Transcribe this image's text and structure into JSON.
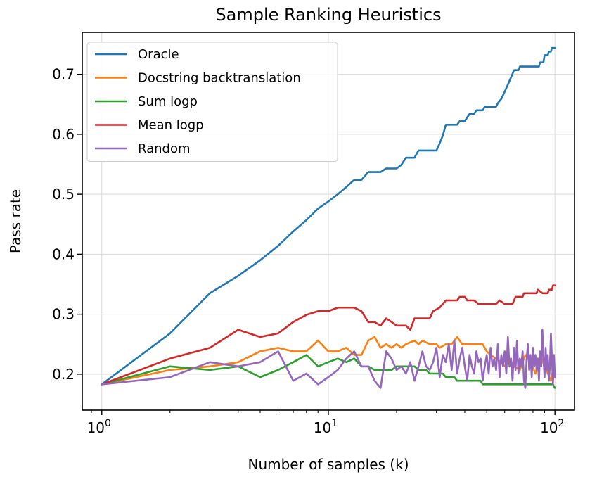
{
  "chart_data": {
    "type": "line",
    "title": "Sample Ranking Heuristics",
    "xlabel": "Number of samples (k)",
    "ylabel": "Pass rate",
    "xscale": "log",
    "xlim": [
      0.82,
      122
    ],
    "ylim": [
      0.14,
      0.77
    ],
    "x_ticks": [
      {
        "value": 1,
        "base": "10",
        "exp": "0"
      },
      {
        "value": 10,
        "base": "10",
        "exp": "1"
      },
      {
        "value": 100,
        "base": "10",
        "exp": "2"
      }
    ],
    "y_ticks": [
      {
        "value": 0.2,
        "label": "0.2"
      },
      {
        "value": 0.3,
        "label": "0.3"
      },
      {
        "value": 0.4,
        "label": "0.4"
      },
      {
        "value": 0.5,
        "label": "0.5"
      },
      {
        "value": 0.6,
        "label": "0.6"
      },
      {
        "value": 0.7,
        "label": "0.7"
      }
    ],
    "grid": true,
    "legend_position": "top-left",
    "series": [
      {
        "name": "Oracle",
        "color": "#1f77b4",
        "points": [
          [
            1,
            0.183
          ],
          [
            2,
            0.268
          ],
          [
            3,
            0.335
          ],
          [
            4,
            0.364
          ],
          [
            5,
            0.39
          ],
          [
            6,
            0.414
          ],
          [
            7,
            0.438
          ],
          [
            8,
            0.457
          ],
          [
            9,
            0.476
          ],
          [
            10,
            0.488
          ],
          [
            11,
            0.5
          ],
          [
            12,
            0.512
          ],
          [
            13,
            0.524
          ],
          [
            14,
            0.524
          ],
          [
            15,
            0.537
          ],
          [
            17,
            0.537
          ],
          [
            18,
            0.543
          ],
          [
            20,
            0.543
          ],
          [
            21,
            0.549
          ],
          [
            22,
            0.561
          ],
          [
            24,
            0.561
          ],
          [
            25,
            0.573
          ],
          [
            30,
            0.573
          ],
          [
            31,
            0.585
          ],
          [
            32,
            0.598
          ],
          [
            33,
            0.616
          ],
          [
            37,
            0.616
          ],
          [
            38,
            0.622
          ],
          [
            40,
            0.622
          ],
          [
            42,
            0.634
          ],
          [
            44,
            0.634
          ],
          [
            45,
            0.64
          ],
          [
            48,
            0.64
          ],
          [
            49,
            0.646
          ],
          [
            55,
            0.646
          ],
          [
            56,
            0.652
          ],
          [
            58,
            0.659
          ],
          [
            60,
            0.671
          ],
          [
            62,
            0.683
          ],
          [
            64,
            0.695
          ],
          [
            66,
            0.707
          ],
          [
            69,
            0.707
          ],
          [
            70,
            0.713
          ],
          [
            85,
            0.713
          ],
          [
            86,
            0.72
          ],
          [
            89,
            0.72
          ],
          [
            90,
            0.732
          ],
          [
            93,
            0.732
          ],
          [
            94,
            0.738
          ],
          [
            96,
            0.738
          ],
          [
            97,
            0.744
          ],
          [
            100,
            0.744
          ]
        ]
      },
      {
        "name": "Docstring backtranslation",
        "color": "#ff7f0e",
        "points": [
          [
            1,
            0.183
          ],
          [
            2,
            0.207
          ],
          [
            3,
            0.213
          ],
          [
            4,
            0.22
          ],
          [
            5,
            0.238
          ],
          [
            6,
            0.244
          ],
          [
            7,
            0.238
          ],
          [
            8,
            0.238
          ],
          [
            9,
            0.256
          ],
          [
            10,
            0.238
          ],
          [
            11,
            0.238
          ],
          [
            12,
            0.244
          ],
          [
            13,
            0.232
          ],
          [
            14,
            0.232
          ],
          [
            15,
            0.256
          ],
          [
            16,
            0.262
          ],
          [
            17,
            0.244
          ],
          [
            18,
            0.25
          ],
          [
            19,
            0.244
          ],
          [
            20,
            0.25
          ],
          [
            21,
            0.244
          ],
          [
            22,
            0.25
          ],
          [
            24,
            0.256
          ],
          [
            25,
            0.25
          ],
          [
            26,
            0.256
          ],
          [
            28,
            0.25
          ],
          [
            30,
            0.25
          ],
          [
            31,
            0.244
          ],
          [
            33,
            0.25
          ],
          [
            35,
            0.25
          ],
          [
            37,
            0.262
          ],
          [
            39,
            0.25
          ],
          [
            47,
            0.25
          ],
          [
            48,
            0.25
          ],
          [
            50,
            0.238
          ],
          [
            52,
            0.232
          ],
          [
            55,
            0.226
          ],
          [
            58,
            0.22
          ],
          [
            60,
            0.213
          ],
          [
            63,
            0.226
          ],
          [
            66,
            0.213
          ],
          [
            70,
            0.207
          ],
          [
            74,
            0.232
          ],
          [
            78,
            0.22
          ],
          [
            82,
            0.201
          ],
          [
            86,
            0.232
          ],
          [
            90,
            0.213
          ],
          [
            93,
            0.201
          ],
          [
            96,
            0.189
          ],
          [
            98,
            0.207
          ],
          [
            100,
            0.195
          ]
        ]
      },
      {
        "name": "Sum logp",
        "color": "#2ca02c",
        "points": [
          [
            1,
            0.183
          ],
          [
            2,
            0.213
          ],
          [
            3,
            0.207
          ],
          [
            4,
            0.213
          ],
          [
            5,
            0.195
          ],
          [
            6,
            0.207
          ],
          [
            7,
            0.22
          ],
          [
            8,
            0.232
          ],
          [
            9,
            0.213
          ],
          [
            10,
            0.22
          ],
          [
            11,
            0.226
          ],
          [
            12,
            0.22
          ],
          [
            13,
            0.226
          ],
          [
            14,
            0.213
          ],
          [
            15,
            0.213
          ],
          [
            16,
            0.207
          ],
          [
            19,
            0.207
          ],
          [
            20,
            0.213
          ],
          [
            24,
            0.213
          ],
          [
            25,
            0.207
          ],
          [
            27,
            0.207
          ],
          [
            28,
            0.201
          ],
          [
            32,
            0.201
          ],
          [
            33,
            0.195
          ],
          [
            36,
            0.195
          ],
          [
            37,
            0.189
          ],
          [
            47,
            0.189
          ],
          [
            48,
            0.183
          ],
          [
            98,
            0.183
          ],
          [
            100,
            0.177
          ]
        ]
      },
      {
        "name": "Mean logp",
        "color": "#d62728",
        "points": [
          [
            1,
            0.183
          ],
          [
            2,
            0.226
          ],
          [
            3,
            0.244
          ],
          [
            4,
            0.274
          ],
          [
            5,
            0.262
          ],
          [
            6,
            0.268
          ],
          [
            7,
            0.287
          ],
          [
            8,
            0.299
          ],
          [
            9,
            0.305
          ],
          [
            10,
            0.305
          ],
          [
            11,
            0.311
          ],
          [
            12,
            0.311
          ],
          [
            13,
            0.311
          ],
          [
            14,
            0.305
          ],
          [
            15,
            0.287
          ],
          [
            16,
            0.287
          ],
          [
            17,
            0.281
          ],
          [
            18,
            0.293
          ],
          [
            19,
            0.287
          ],
          [
            20,
            0.281
          ],
          [
            22,
            0.281
          ],
          [
            23,
            0.274
          ],
          [
            24,
            0.293
          ],
          [
            28,
            0.293
          ],
          [
            29,
            0.305
          ],
          [
            31,
            0.311
          ],
          [
            33,
            0.323
          ],
          [
            37,
            0.323
          ],
          [
            38,
            0.329
          ],
          [
            40,
            0.329
          ],
          [
            41,
            0.323
          ],
          [
            44,
            0.323
          ],
          [
            46,
            0.317
          ],
          [
            55,
            0.317
          ],
          [
            57,
            0.323
          ],
          [
            60,
            0.317
          ],
          [
            65,
            0.317
          ],
          [
            67,
            0.329
          ],
          [
            72,
            0.329
          ],
          [
            73,
            0.335
          ],
          [
            83,
            0.335
          ],
          [
            84,
            0.341
          ],
          [
            88,
            0.335
          ],
          [
            93,
            0.335
          ],
          [
            94,
            0.341
          ],
          [
            97,
            0.341
          ],
          [
            98,
            0.348
          ],
          [
            100,
            0.348
          ]
        ]
      },
      {
        "name": "Random",
        "color": "#9467bd",
        "points": [
          [
            1,
            0.183
          ],
          [
            2,
            0.195
          ],
          [
            3,
            0.22
          ],
          [
            4,
            0.213
          ],
          [
            5,
            0.22
          ],
          [
            6,
            0.238
          ],
          [
            7,
            0.189
          ],
          [
            8,
            0.201
          ],
          [
            9,
            0.183
          ],
          [
            10,
            0.195
          ],
          [
            11,
            0.207
          ],
          [
            12,
            0.226
          ],
          [
            13,
            0.238
          ],
          [
            14,
            0.213
          ],
          [
            15,
            0.213
          ],
          [
            16,
            0.189
          ],
          [
            17,
            0.177
          ],
          [
            18,
            0.238
          ],
          [
            19,
            0.226
          ],
          [
            20,
            0.207
          ],
          [
            21,
            0.213
          ],
          [
            22,
            0.201
          ],
          [
            23,
            0.22
          ],
          [
            24,
            0.189
          ],
          [
            25,
            0.213
          ],
          [
            26,
            0.238
          ],
          [
            27,
            0.213
          ],
          [
            28,
            0.207
          ],
          [
            29,
            0.22
          ],
          [
            30,
            0.244
          ],
          [
            31,
            0.195
          ],
          [
            32,
            0.232
          ],
          [
            33,
            0.22
          ],
          [
            34,
            0.25
          ],
          [
            35,
            0.207
          ],
          [
            36,
            0.256
          ],
          [
            37,
            0.201
          ],
          [
            38,
            0.226
          ],
          [
            39,
            0.244
          ],
          [
            40,
            0.213
          ],
          [
            41,
            0.189
          ],
          [
            42,
            0.232
          ],
          [
            43,
            0.213
          ],
          [
            44,
            0.201
          ],
          [
            45,
            0.238
          ],
          [
            46,
            0.22
          ],
          [
            47,
            0.226
          ],
          [
            48,
            0.189
          ],
          [
            49,
            0.213
          ],
          [
            50,
            0.232
          ],
          [
            51,
            0.201
          ],
          [
            52,
            0.244
          ],
          [
            53,
            0.213
          ],
          [
            54,
            0.226
          ],
          [
            55,
            0.207
          ],
          [
            56,
            0.25
          ],
          [
            57,
            0.195
          ],
          [
            58,
            0.232
          ],
          [
            59,
            0.213
          ],
          [
            60,
            0.238
          ],
          [
            61,
            0.201
          ],
          [
            62,
            0.262
          ],
          [
            63,
            0.213
          ],
          [
            64,
            0.226
          ],
          [
            65,
            0.189
          ],
          [
            66,
            0.244
          ],
          [
            67,
            0.207
          ],
          [
            68,
            0.256
          ],
          [
            69,
            0.201
          ],
          [
            70,
            0.226
          ],
          [
            71,
            0.213
          ],
          [
            72,
            0.238
          ],
          [
            73,
            0.189
          ],
          [
            74,
            0.177
          ],
          [
            75,
            0.226
          ],
          [
            76,
            0.25
          ],
          [
            77,
            0.207
          ],
          [
            78,
            0.232
          ],
          [
            79,
            0.195
          ],
          [
            80,
            0.244
          ],
          [
            81,
            0.213
          ],
          [
            82,
            0.232
          ],
          [
            83,
            0.207
          ],
          [
            84,
            0.226
          ],
          [
            85,
            0.189
          ],
          [
            86,
            0.238
          ],
          [
            87,
            0.213
          ],
          [
            88,
            0.274
          ],
          [
            89,
            0.226
          ],
          [
            90,
            0.195
          ],
          [
            91,
            0.244
          ],
          [
            92,
            0.207
          ],
          [
            93,
            0.232
          ],
          [
            94,
            0.189
          ],
          [
            95,
            0.213
          ],
          [
            96,
            0.268
          ],
          [
            97,
            0.226
          ],
          [
            98,
            0.183
          ],
          [
            99,
            0.232
          ],
          [
            100,
            0.195
          ]
        ]
      }
    ]
  }
}
